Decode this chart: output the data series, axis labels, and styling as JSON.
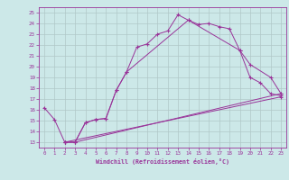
{
  "bg_color": "#cce8e8",
  "grid_color": "#b0c8c8",
  "line_color": "#993399",
  "xlim": [
    -0.5,
    23.5
  ],
  "ylim": [
    12.5,
    25.5
  ],
  "xticks": [
    0,
    1,
    2,
    3,
    4,
    5,
    6,
    7,
    8,
    9,
    10,
    11,
    12,
    13,
    14,
    15,
    16,
    17,
    18,
    19,
    20,
    21,
    22,
    23
  ],
  "yticks": [
    13,
    14,
    15,
    16,
    17,
    18,
    19,
    20,
    21,
    22,
    23,
    24,
    25
  ],
  "xlabel": "Windchill (Refroidissement éolien,°C)",
  "line1_x": [
    0,
    1,
    2,
    3,
    4,
    5,
    6,
    7,
    8,
    9,
    10,
    11,
    12,
    13,
    14,
    15,
    16,
    17,
    18,
    19,
    20,
    21,
    22,
    23
  ],
  "line1_y": [
    16.2,
    15.1,
    13.0,
    13.0,
    14.8,
    15.1,
    15.2,
    17.8,
    19.5,
    21.8,
    22.1,
    23.0,
    23.3,
    24.8,
    24.3,
    23.9,
    24.0,
    23.7,
    23.5,
    21.5,
    19.0,
    18.5,
    17.5,
    17.3
  ],
  "line2_x": [
    2,
    3,
    4,
    5,
    6,
    7,
    8,
    14,
    19,
    20,
    22,
    23
  ],
  "line2_y": [
    13.0,
    13.0,
    14.8,
    15.1,
    15.2,
    17.8,
    19.5,
    24.3,
    21.5,
    20.2,
    19.0,
    17.5
  ],
  "line3_x": [
    2,
    3,
    23
  ],
  "line3_y": [
    13.0,
    13.0,
    17.5
  ],
  "line4_x": [
    2,
    23
  ],
  "line4_y": [
    13.0,
    17.2
  ]
}
